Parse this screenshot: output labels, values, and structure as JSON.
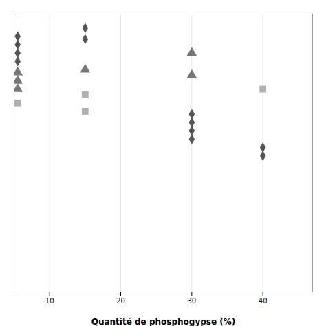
{
  "chart_data": {
    "type": "scatter",
    "xlabel": "Quantité de phosphogypse (%)",
    "xlim": [
      5,
      47
    ],
    "ylim": [
      0,
      100
    ],
    "xticks": [
      10,
      20,
      30,
      40
    ],
    "yticks": [],
    "grid": true,
    "tick_labels": "x",
    "series": [
      {
        "color": "#555555",
        "marker": "diamond",
        "x": [
          5.5,
          5.5,
          5.5,
          5.5,
          15,
          15,
          30,
          30,
          30,
          30,
          40,
          40
        ],
        "values": [
          92,
          89,
          86,
          83,
          95,
          91,
          64,
          61,
          58,
          55,
          52,
          49
        ]
      },
      {
        "color": "#777777",
        "marker": "triangle",
        "x": [
          5.5,
          5.5,
          5.5,
          15,
          30,
          30
        ],
        "values": [
          79,
          76,
          73,
          80,
          86,
          78
        ]
      },
      {
        "color": "#b0b0b0",
        "marker": "square",
        "x": [
          5.5,
          15,
          15,
          40
        ],
        "values": [
          68,
          71,
          65,
          73
        ]
      }
    ]
  }
}
